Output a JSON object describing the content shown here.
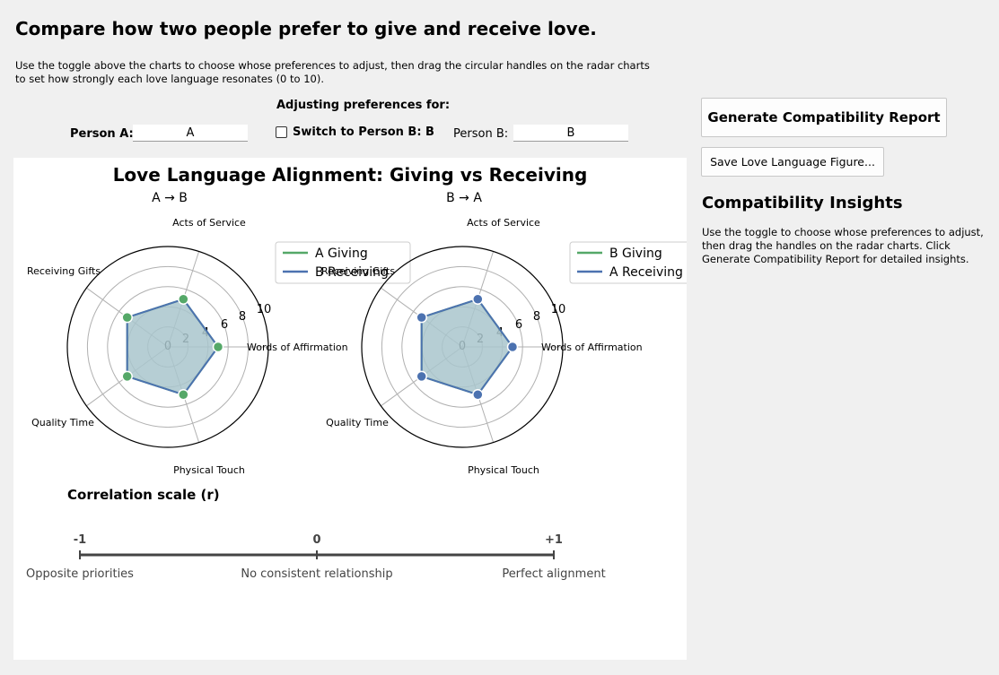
{
  "heading": "Compare how two people prefer to give and receive love.",
  "instructions": "Use the toggle above the charts to choose whose preferences to adjust, then drag the circular handles on the radar charts to set how strongly each love language resonates (0 to 10).",
  "adjusting_label": "Adjusting preferences for:",
  "person_a": {
    "label": "Person A:",
    "value": "A"
  },
  "person_b": {
    "label": "Person B:",
    "value": "B"
  },
  "switch": {
    "label": "Switch to Person B: B",
    "checked": false
  },
  "buttons": {
    "generate": "Generate Compatibility Report",
    "save": "Save Love Language Figure..."
  },
  "insights": {
    "title": "Compatibility Insights",
    "text": "Use the toggle to choose whose preferences to adjust, then drag the handles on the radar charts. Click Generate Compatibility Report for detailed insights."
  },
  "figure": {
    "title": "Love Language Alignment: Giving vs Receiving",
    "categories": [
      "Words of Affirmation",
      "Acts of Service",
      "Receiving Gifts",
      "Quality Time",
      "Physical Touch"
    ],
    "r_ticks": [
      "0",
      "2",
      "4",
      "6",
      "8",
      "10"
    ],
    "colors": {
      "giving": "#55a868",
      "receiving": "#4c72b0",
      "fill": "#a9c6cc"
    },
    "scale": {
      "title": "Correlation scale (r)",
      "ticks": [
        "-1",
        "0",
        "+1"
      ],
      "captions": [
        "Opposite priorities",
        "No consistent relationship",
        "Perfect alignment"
      ]
    }
  },
  "chart_data": [
    {
      "type": "radar",
      "title": "A → B",
      "categories": [
        "Words of Affirmation",
        "Acts of Service",
        "Receiving Gifts",
        "Quality Time",
        "Physical Touch"
      ],
      "rlim": [
        0,
        10
      ],
      "legend_position": "upper-right",
      "series": [
        {
          "name": "A Giving",
          "values": [
            5,
            5,
            5,
            5,
            5
          ],
          "color": "#55a868"
        },
        {
          "name": "B Receiving",
          "values": [
            5,
            5,
            5,
            5,
            5
          ],
          "color": "#4c72b0"
        }
      ]
    },
    {
      "type": "radar",
      "title": "B → A",
      "categories": [
        "Words of Affirmation",
        "Acts of Service",
        "Receiving Gifts",
        "Quality Time",
        "Physical Touch"
      ],
      "rlim": [
        0,
        10
      ],
      "legend_position": "upper-right",
      "series": [
        {
          "name": "B Giving",
          "values": [
            5,
            5,
            5,
            5,
            5
          ],
          "color": "#55a868"
        },
        {
          "name": "A Receiving",
          "values": [
            5,
            5,
            5,
            5,
            5
          ],
          "color": "#4c72b0"
        }
      ]
    }
  ]
}
